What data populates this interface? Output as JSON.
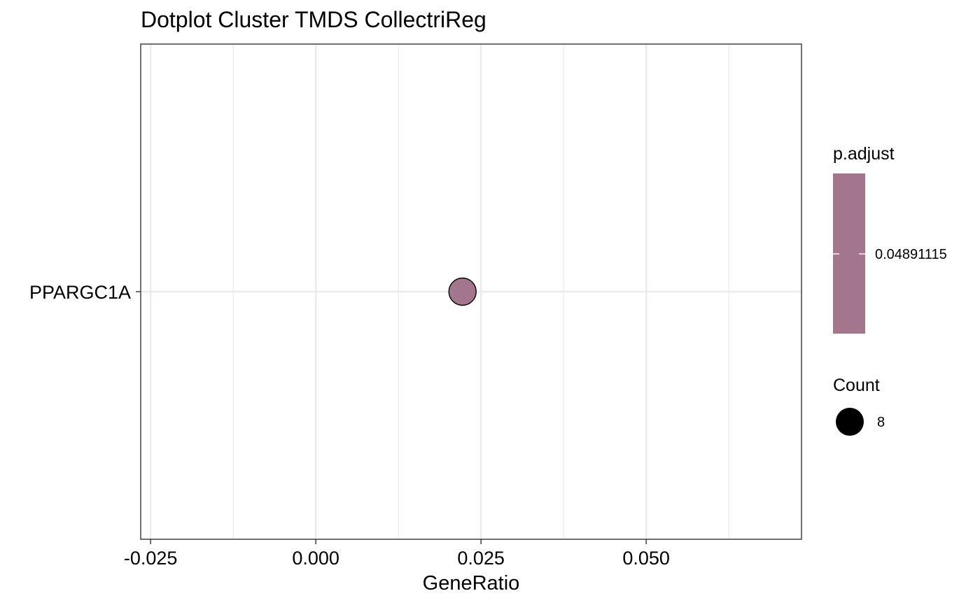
{
  "chart_data": {
    "type": "scatter",
    "title": "Dotplot Cluster TMDS CollectriReg",
    "xlabel": "GeneRatio",
    "ylabel": "",
    "xlim": [
      -0.0265,
      0.0735
    ],
    "x_ticks": [
      -0.025,
      0.0,
      0.025,
      0.05
    ],
    "x_tick_labels": [
      "-0.025",
      "0.000",
      "0.025",
      "0.050"
    ],
    "categories": [
      "PPARGC1A"
    ],
    "points": [
      {
        "category": "PPARGC1A",
        "x": 0.0222,
        "count": 8,
        "p_adjust": 0.04891115,
        "color": "#a3768d"
      }
    ],
    "grid": true,
    "legend": {
      "placement": "right",
      "color": {
        "title": "p.adjust",
        "labels": [
          "0.04891115"
        ],
        "color": "#a3768d"
      },
      "size": {
        "title": "Count",
        "labels": [
          "8"
        ]
      }
    }
  },
  "colors": {
    "point": "#a3768d",
    "grid": "#ebebeb",
    "panel_border": "#333333"
  }
}
